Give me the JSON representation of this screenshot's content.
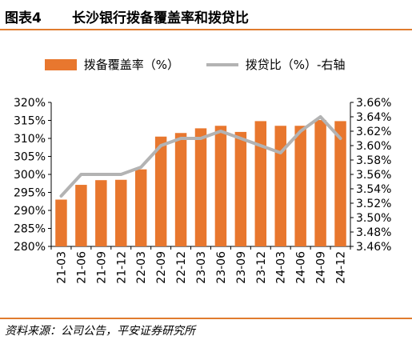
{
  "figure": {
    "number": "图表4",
    "title": "长沙银行拨备覆盖率和拨贷比",
    "source": "资料来源：公司公告，平安证券研究所"
  },
  "colors": {
    "bar": "#e8772e",
    "line": "#b3b3b3",
    "accent": "#e07b2e"
  },
  "chart_data": {
    "type": "bar",
    "categories": [
      "21-03",
      "21-06",
      "21-09",
      "21-12",
      "22-03",
      "22-09",
      "22-12",
      "23-03",
      "23-06",
      "23-09",
      "23-12",
      "24-03",
      "24-06",
      "24-09",
      "24-12"
    ],
    "series": [
      {
        "name": "拨备覆盖率（%）",
        "type": "bar",
        "axis": "left",
        "values": [
          293.0,
          297.1,
          298.4,
          298.5,
          301.4,
          310.5,
          311.5,
          312.8,
          313.5,
          311.8,
          314.8,
          313.5,
          313.5,
          315.1,
          314.8
        ]
      },
      {
        "name": "拨贷比（%）-右轴",
        "type": "line",
        "axis": "right",
        "values": [
          3.53,
          3.56,
          3.56,
          3.56,
          3.57,
          3.6,
          3.61,
          3.61,
          3.62,
          3.61,
          3.6,
          3.59,
          3.62,
          3.64,
          3.61
        ]
      }
    ],
    "y_left": {
      "range": [
        280,
        320
      ],
      "ticks": [
        280,
        285,
        290,
        295,
        300,
        305,
        310,
        315,
        320
      ],
      "tick_labels": [
        "280%",
        "285%",
        "290%",
        "295%",
        "300%",
        "305%",
        "310%",
        "315%",
        "320%"
      ]
    },
    "y_right": {
      "range": [
        3.46,
        3.66
      ],
      "ticks": [
        3.46,
        3.48,
        3.5,
        3.52,
        3.54,
        3.56,
        3.58,
        3.6,
        3.62,
        3.64,
        3.66
      ],
      "tick_labels": [
        "3.46%",
        "3.48%",
        "3.50%",
        "3.52%",
        "3.54%",
        "3.56%",
        "3.58%",
        "3.60%",
        "3.62%",
        "3.64%",
        "3.66%"
      ]
    },
    "grid": false,
    "legend_position": "top"
  }
}
